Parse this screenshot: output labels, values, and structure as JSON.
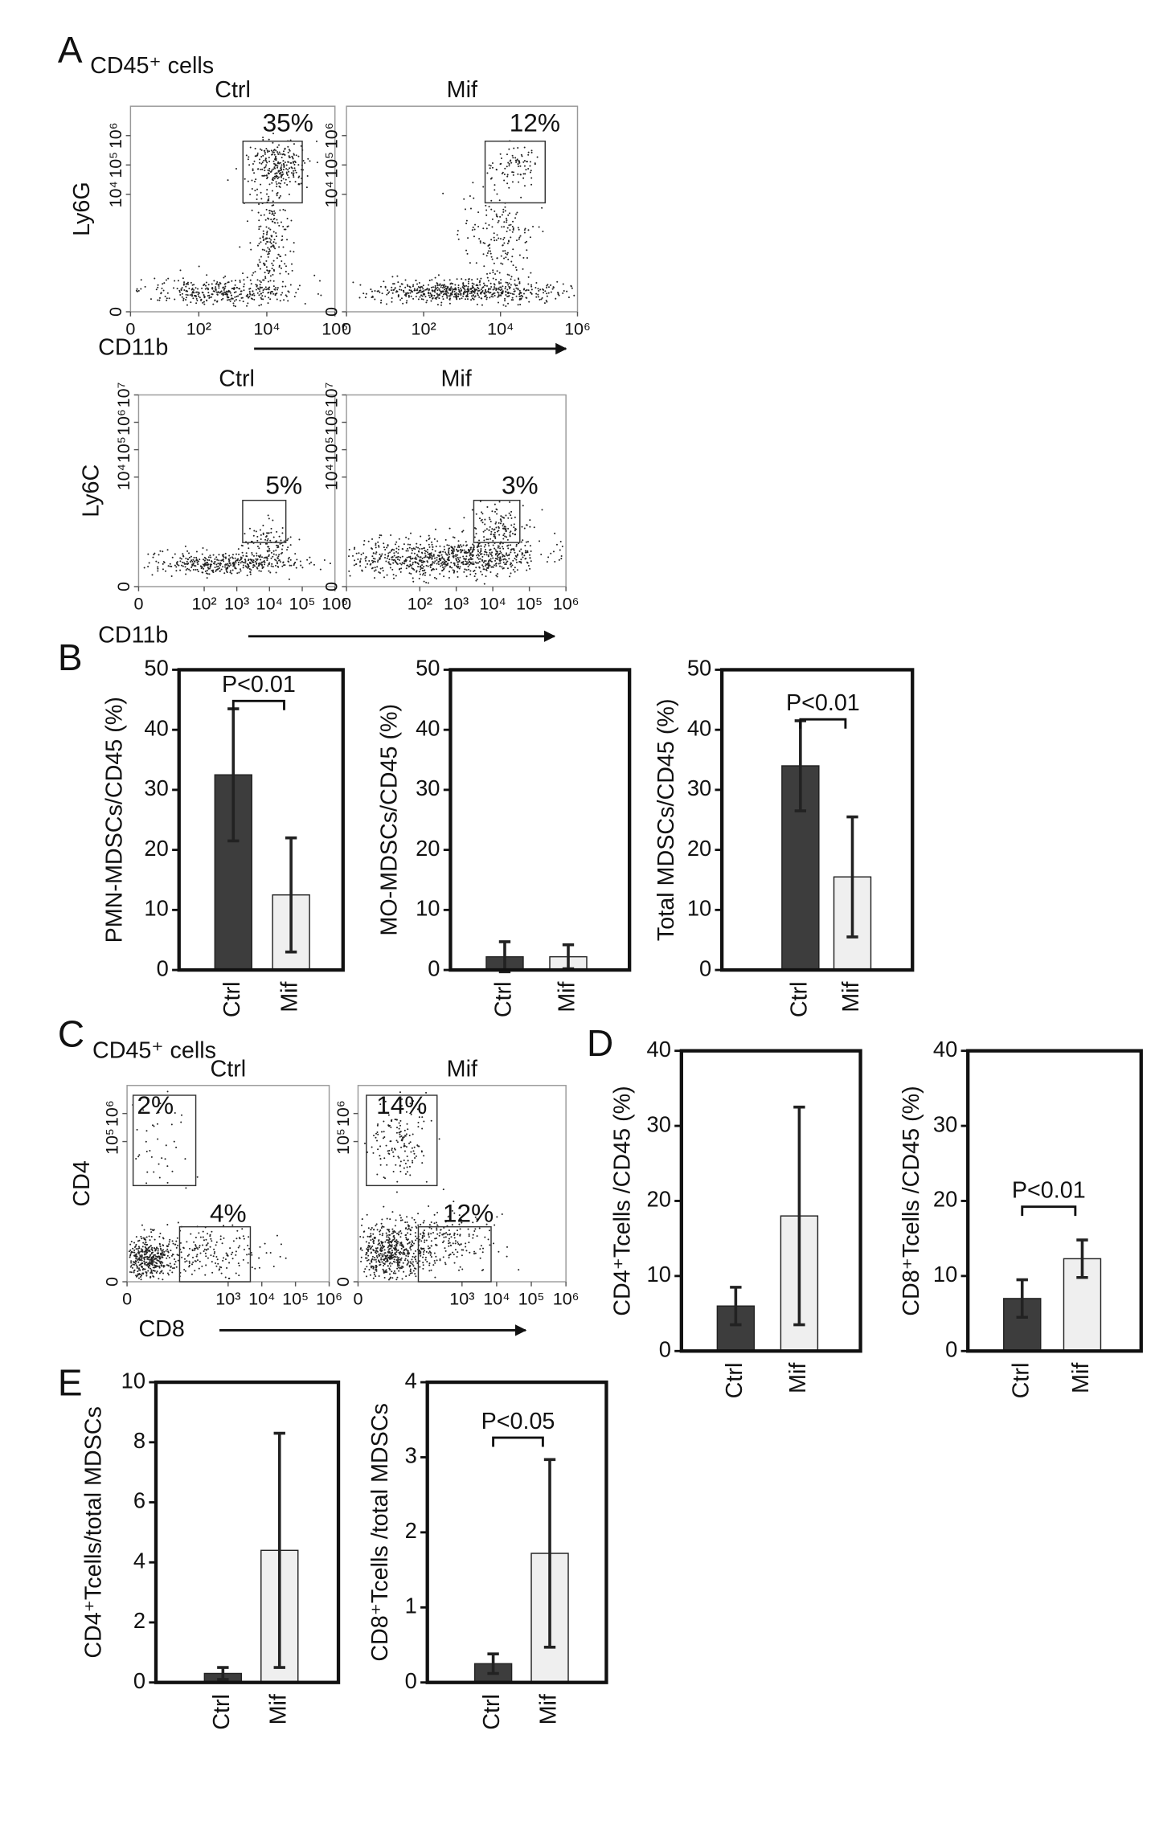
{
  "panel_labels": [
    "A",
    "B",
    "C",
    "D",
    "E"
  ],
  "headers": [
    "CD45⁺ cells",
    "CD45⁺ cells"
  ],
  "chart_data": [
    {
      "type": "flow",
      "title": "Ctrl",
      "xlabel": "CD11b",
      "ylabel": "Ly6G",
      "xscale": "biexponential",
      "yscale": "biexponential",
      "xlim": [
        0,
        1000000
      ],
      "ylim": [
        0,
        10000000
      ],
      "xticks": [
        0,
        {
          "value": 100,
          "label": "10²"
        },
        {
          "value": 10000,
          "label": "10⁴"
        },
        {
          "value": 1000000,
          "label": "10⁶"
        }
      ],
      "yticks": [
        0,
        {
          "value": 10000,
          "label": "10⁴"
        },
        {
          "value": 100000,
          "label": "10⁵"
        },
        {
          "value": 1000000,
          "label": "10⁶"
        }
      ],
      "values": [
        35
      ],
      "value_labels": [
        "35%"
      ]
    },
    {
      "type": "flow",
      "title": "Mif",
      "xscale": "biexponential",
      "yscale": "biexponential",
      "xlim": [
        0,
        1000000
      ],
      "ylim": [
        0,
        10000000
      ],
      "xticks": [
        0,
        {
          "value": 100,
          "label": "10²"
        },
        {
          "value": 10000,
          "label": "10⁴"
        },
        {
          "value": 1000000,
          "label": "10⁶"
        }
      ],
      "yticks": [
        0,
        {
          "value": 10000,
          "label": "10⁴"
        },
        {
          "value": 100000,
          "label": "10⁵"
        },
        {
          "value": 1000000,
          "label": "10⁶"
        }
      ],
      "values": [
        12
      ],
      "value_labels": [
        "12%"
      ]
    },
    {
      "type": "flow",
      "title": "Ctrl",
      "xlabel": "CD11b",
      "ylabel": "Ly6C",
      "xscale": "biexponential",
      "yscale": "biexponential",
      "xlim": [
        0,
        1000000
      ],
      "ylim": [
        0,
        10000000
      ],
      "xticks": [
        0,
        {
          "value": 100,
          "label": "10²"
        },
        {
          "value": 1000,
          "label": "10³"
        },
        {
          "value": 10000,
          "label": "10⁴"
        },
        {
          "value": 100000,
          "label": "10⁵"
        },
        {
          "value": 1000000,
          "label": "10⁶"
        }
      ],
      "yticks": [
        0,
        {
          "value": 10000,
          "label": "10⁴"
        },
        {
          "value": 100000,
          "label": "10⁵"
        },
        {
          "value": 1000000,
          "label": "10⁶"
        },
        {
          "value": 10000000,
          "label": "10⁷"
        }
      ],
      "values": [
        5
      ],
      "value_labels": [
        "5%"
      ]
    },
    {
      "type": "flow",
      "title": "Mif",
      "xscale": "biexponential",
      "yscale": "biexponential",
      "xlim": [
        0,
        1000000
      ],
      "ylim": [
        0,
        10000000
      ],
      "xticks": [
        0,
        {
          "value": 100,
          "label": "10²"
        },
        {
          "value": 1000,
          "label": "10³"
        },
        {
          "value": 10000,
          "label": "10⁴"
        },
        {
          "value": 100000,
          "label": "10⁵"
        },
        {
          "value": 1000000,
          "label": "10⁶"
        }
      ],
      "yticks": [
        0,
        {
          "value": 10000,
          "label": "10⁴"
        },
        {
          "value": 100000,
          "label": "10⁵"
        },
        {
          "value": 1000000,
          "label": "10⁶"
        },
        {
          "value": 10000000,
          "label": "10⁷"
        }
      ],
      "values": [
        3
      ],
      "value_labels": [
        "3%"
      ]
    },
    {
      "type": "flow",
      "title": "Ctrl",
      "xlabel": "CD8",
      "ylabel": "CD4",
      "xscale": "biexponential",
      "yscale": "biexponential",
      "xlim": [
        0,
        1000000
      ],
      "ylim": [
        0,
        10000000
      ],
      "xticks": [
        0,
        {
          "value": 1000,
          "label": "10³"
        },
        {
          "value": 10000,
          "label": "10⁴"
        },
        {
          "value": 100000,
          "label": "10⁵"
        },
        {
          "value": 1000000,
          "label": "10⁶"
        }
      ],
      "yticks": [
        0,
        {
          "value": 100000,
          "label": "10⁵"
        },
        {
          "value": 1000000,
          "label": "10⁶"
        }
      ],
      "values": [
        2,
        4
      ],
      "value_labels": [
        "2%",
        "4%"
      ]
    },
    {
      "type": "flow",
      "title": "Mif",
      "xscale": "biexponential",
      "yscale": "biexponential",
      "xlim": [
        0,
        1000000
      ],
      "ylim": [
        0,
        10000000
      ],
      "xticks": [
        0,
        {
          "value": 1000,
          "label": "10³"
        },
        {
          "value": 10000,
          "label": "10⁴"
        },
        {
          "value": 100000,
          "label": "10⁵"
        },
        {
          "value": 1000000,
          "label": "10⁶"
        }
      ],
      "yticks": [
        0,
        {
          "value": 100000,
          "label": "10⁵"
        },
        {
          "value": 1000000,
          "label": "10⁶"
        }
      ],
      "values": [
        14,
        12
      ],
      "value_labels": [
        "14%",
        "12%"
      ]
    },
    {
      "type": "bar",
      "ylabel": "PMN-MDSCs/CD45 (%)",
      "categories": [
        "Ctrl",
        "Mif"
      ],
      "values": [
        32.5,
        12.5
      ],
      "errors": [
        11,
        9.5
      ],
      "colors": [
        "#3d3d3d",
        "#efefef"
      ],
      "ylim": [
        0,
        50
      ],
      "yticks": [
        0,
        10,
        20,
        30,
        40,
        50
      ],
      "annotation": "P<0.01"
    },
    {
      "type": "bar",
      "ylabel": "MO-MDSCs/CD45 (%)",
      "categories": [
        "Ctrl",
        "Mif"
      ],
      "values": [
        2.2,
        2.2
      ],
      "errors": [
        2.5,
        2
      ],
      "colors": [
        "#3d3d3d",
        "#efefef"
      ],
      "ylim": [
        0,
        50
      ],
      "yticks": [
        0,
        10,
        20,
        30,
        40,
        50
      ]
    },
    {
      "type": "bar",
      "ylabel": "Total MDSCs/CD45 (%)",
      "categories": [
        "Ctrl",
        "Mif"
      ],
      "values": [
        34,
        15.5
      ],
      "errors": [
        7.5,
        10
      ],
      "colors": [
        "#3d3d3d",
        "#efefef"
      ],
      "ylim": [
        0,
        50
      ],
      "yticks": [
        0,
        10,
        20,
        30,
        40,
        50
      ],
      "annotation": "P<0.01"
    },
    {
      "type": "bar",
      "ylabel": "CD4⁺Tcells /CD45 (%)",
      "categories": [
        "Ctrl",
        "Mif"
      ],
      "values": [
        6,
        18
      ],
      "errors": [
        2.5,
        14.5
      ],
      "colors": [
        "#3d3d3d",
        "#efefef"
      ],
      "ylim": [
        0,
        40
      ],
      "yticks": [
        0,
        10,
        20,
        30,
        40
      ]
    },
    {
      "type": "bar",
      "ylabel": "CD8⁺Tcells /CD45 (%)",
      "categories": [
        "Ctrl",
        "Mif"
      ],
      "values": [
        7,
        12.3
      ],
      "errors": [
        2.5,
        2.5
      ],
      "colors": [
        "#3d3d3d",
        "#efefef"
      ],
      "ylim": [
        0,
        40
      ],
      "yticks": [
        0,
        10,
        20,
        30,
        40
      ],
      "annotation": "P<0.01"
    },
    {
      "type": "bar",
      "ylabel": "CD4⁺Tcells/total MDSCs",
      "categories": [
        "Ctrl",
        "Mif"
      ],
      "values": [
        0.3,
        4.4
      ],
      "errors": [
        0.2,
        3.9
      ],
      "colors": [
        "#3d3d3d",
        "#efefef"
      ],
      "ylim": [
        0,
        10
      ],
      "yticks": [
        0,
        2,
        4,
        6,
        8,
        10
      ]
    },
    {
      "type": "bar",
      "ylabel": "CD8⁺Tcells /total MDSCs",
      "categories": [
        "Ctrl",
        "Mif"
      ],
      "values": [
        0.25,
        1.72
      ],
      "errors": [
        0.13,
        1.25
      ],
      "colors": [
        "#3d3d3d",
        "#efefef"
      ],
      "ylim": [
        0,
        4
      ],
      "yticks": [
        0,
        1,
        2,
        3,
        4
      ],
      "annotation": "P<0.05"
    }
  ]
}
